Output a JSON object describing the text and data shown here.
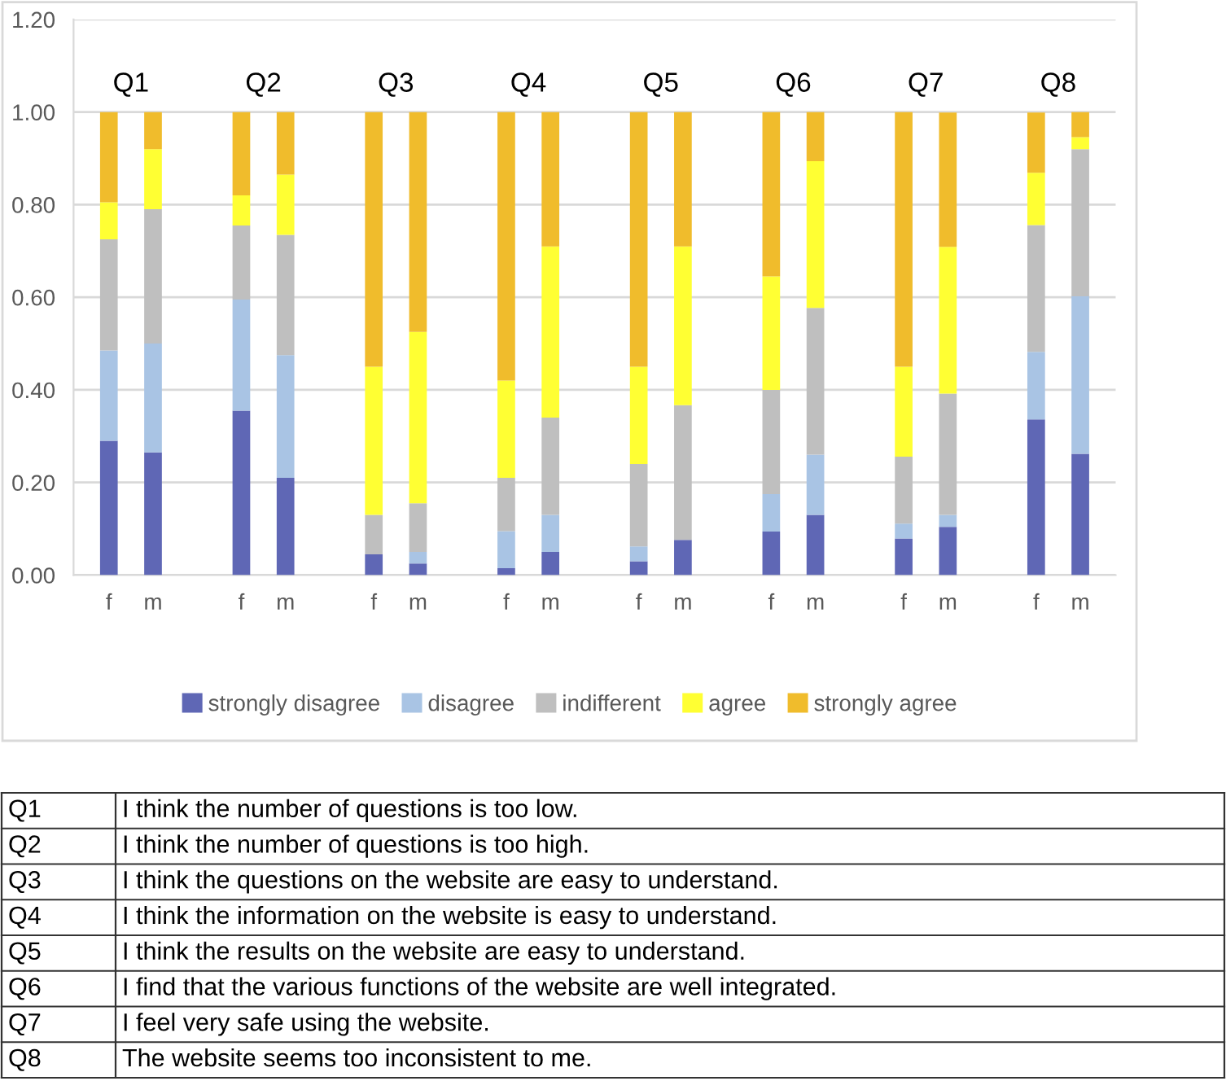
{
  "chart_data": {
    "type": "bar",
    "stacked": true,
    "categories": [
      "f",
      "m",
      null,
      "f",
      "m",
      null,
      "f",
      "m",
      null,
      "f",
      "m",
      null,
      "f",
      "m",
      null,
      "f",
      "m",
      null,
      "f",
      "m",
      null,
      "f",
      "m"
    ],
    "series": [
      {
        "name": "strongly disagree",
        "color": "#5f67b5",
        "values": [
          0.29,
          0.265,
          null,
          0.355,
          0.21,
          null,
          0.045,
          0.025,
          null,
          0.015,
          0.05,
          null,
          0.03,
          0.076,
          null,
          0.094,
          0.13,
          null,
          0.079,
          0.104,
          null,
          0.336,
          0.262
        ]
      },
      {
        "name": "disagree",
        "color": "#a9c4e4",
        "values": [
          0.195,
          0.235,
          null,
          0.24,
          0.265,
          null,
          0,
          0.025,
          null,
          0.08,
          0.08,
          null,
          0.032,
          0,
          null,
          0.081,
          0.13,
          null,
          0.032,
          0.026,
          null,
          0.146,
          0.34
        ]
      },
      {
        "name": "indifferent",
        "color": "#bfbfbf",
        "values": [
          0.24,
          0.29,
          null,
          0.16,
          0.26,
          null,
          0.085,
          0.105,
          null,
          0.115,
          0.21,
          null,
          0.178,
          0.291,
          null,
          0.225,
          0.317,
          null,
          0.145,
          0.262,
          null,
          0.274,
          0.318
        ]
      },
      {
        "name": "agree",
        "color": "#ffff33",
        "values": [
          0.08,
          0.13,
          null,
          0.065,
          0.13,
          null,
          0.32,
          0.37,
          null,
          0.21,
          0.37,
          null,
          0.21,
          0.343,
          null,
          0.245,
          0.317,
          null,
          0.194,
          0.317,
          null,
          0.113,
          0.026
        ]
      },
      {
        "name": "strongly agree",
        "color": "#f0bc2c",
        "values": [
          0.195,
          0.08,
          null,
          0.18,
          0.135,
          null,
          0.55,
          0.475,
          null,
          0.58,
          0.29,
          null,
          0.55,
          0.29,
          null,
          0.355,
          0.106,
          null,
          0.55,
          0.29,
          null,
          0.13,
          0.054
        ]
      }
    ],
    "ylim": [
      0,
      1.2
    ],
    "yticks": [
      {
        "value": 0,
        "label": "0.00"
      },
      {
        "value": 0.2,
        "label": "0.20"
      },
      {
        "value": 0.4,
        "label": "0.40"
      },
      {
        "value": 0.6,
        "label": "0.60"
      },
      {
        "value": 0.8,
        "label": "0.80"
      },
      {
        "value": 1.0,
        "label": "1.00"
      },
      {
        "value": 1.2,
        "label": "1.20"
      }
    ],
    "grid": "y",
    "legend": "bottom",
    "annotations": [
      "Q1",
      "Q2",
      "Q3",
      "Q4",
      "Q5",
      "Q6",
      "Q7",
      "Q8",
      "Q1",
      "I think the number of questions is too low.",
      "Q2",
      "I think the number of questions is too high.",
      "Q3",
      "I think the questions on the website are easy to understand.",
      "Q4",
      "I think the information on the website is easy to understand.",
      "Q5",
      "I think the results on the website are easy to understand.",
      "Q6",
      "I find that the various functions of the website are well integrated.",
      "Q7",
      "I feel very safe using the website.",
      "Q8",
      "The website seems too inconsistent to me."
    ]
  }
}
